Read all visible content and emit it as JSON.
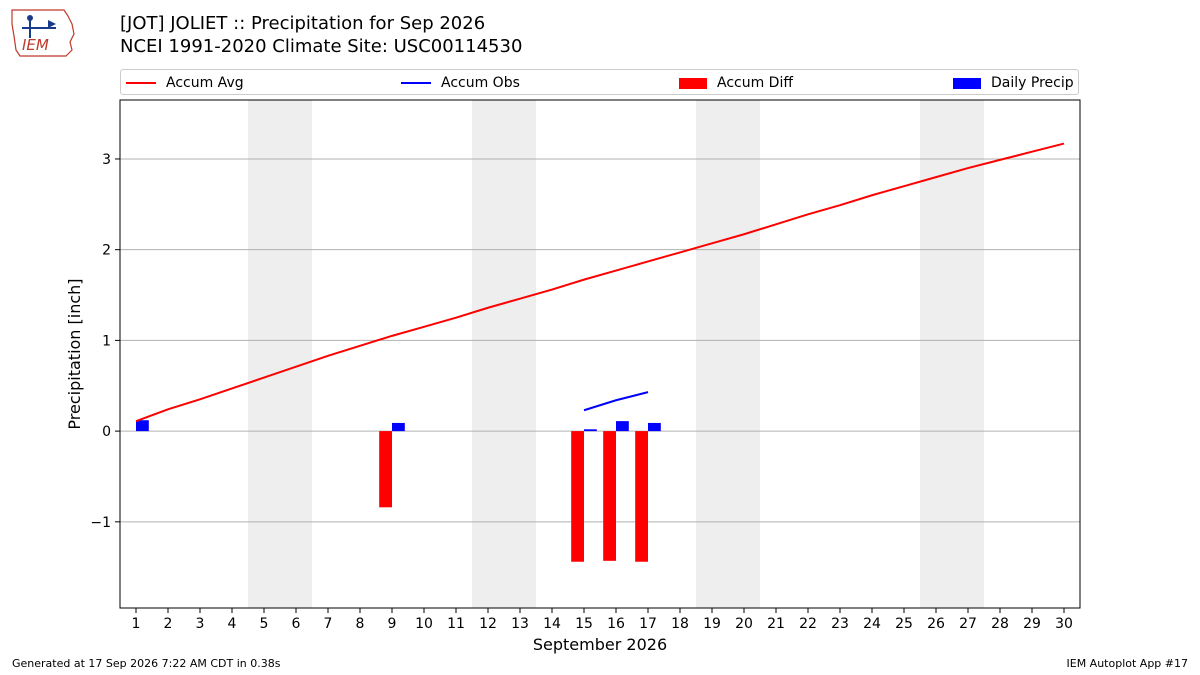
{
  "header": {
    "title_line1": "[JOT] JOLIET :: Precipitation for Sep 2026",
    "title_line2": "NCEI 1991-2020 Climate Site: USC00114530",
    "logo_text": "IEM"
  },
  "footer": {
    "generated": "Generated at 17 Sep 2026 7:22 AM CDT in 0.38s",
    "app": "IEM Autoplot App #17"
  },
  "colors": {
    "avg": "#ff0000",
    "obs": "#0000ff",
    "diff": "#ff0000",
    "daily": "#0000ff",
    "weekend": "#eeeeee",
    "grid": "#b0b0b0"
  },
  "legend": [
    {
      "label": "Accum Avg",
      "kind": "line",
      "color": "#ff0000"
    },
    {
      "label": "Accum Obs",
      "kind": "line",
      "color": "#0000ff"
    },
    {
      "label": "Accum Diff",
      "kind": "rect",
      "color": "#ff0000"
    },
    {
      "label": "Daily Precip",
      "kind": "rect",
      "color": "#0000ff"
    }
  ],
  "chart_data": {
    "type": "bar",
    "xlabel": "September 2026",
    "ylabel": "Precipitation [inch]",
    "xlim": [
      0.5,
      30.5
    ],
    "ylim": [
      -1.95,
      3.65
    ],
    "x_ticks": [
      1,
      2,
      3,
      4,
      5,
      6,
      7,
      8,
      9,
      10,
      11,
      12,
      13,
      14,
      15,
      16,
      17,
      18,
      19,
      20,
      21,
      22,
      23,
      24,
      25,
      26,
      27,
      28,
      29,
      30
    ],
    "y_ticks": [
      -1,
      0,
      1,
      2,
      3
    ],
    "y_tick_labels": [
      "−1",
      "0",
      "1",
      "2",
      "3"
    ],
    "grid": "horizontal",
    "legend_position": "top",
    "weekend_bands": [
      [
        4.5,
        6.5
      ],
      [
        11.5,
        13.5
      ],
      [
        18.5,
        20.5
      ],
      [
        25.5,
        27.5
      ]
    ],
    "series": [
      {
        "name": "Accum Avg",
        "type": "line",
        "x": [
          1,
          2,
          3,
          4,
          5,
          6,
          7,
          8,
          9,
          10,
          11,
          12,
          13,
          14,
          15,
          16,
          17,
          18,
          19,
          20,
          21,
          22,
          23,
          24,
          25,
          26,
          27,
          28,
          29,
          30
        ],
        "values": [
          0.11,
          0.24,
          0.35,
          0.47,
          0.59,
          0.71,
          0.83,
          0.94,
          1.05,
          1.15,
          1.25,
          1.36,
          1.46,
          1.56,
          1.67,
          1.77,
          1.87,
          1.97,
          2.07,
          2.17,
          2.28,
          2.39,
          2.49,
          2.6,
          2.7,
          2.8,
          2.9,
          2.99,
          3.08,
          3.17
        ]
      },
      {
        "name": "Accum Obs",
        "type": "line",
        "x": [
          15,
          16,
          17
        ],
        "values": [
          0.23,
          0.34,
          0.43
        ]
      },
      {
        "name": "Accum Diff",
        "type": "bar",
        "x": [
          9,
          15,
          16,
          17
        ],
        "values": [
          -0.84,
          -1.44,
          -1.43,
          -1.44
        ]
      },
      {
        "name": "Daily Precip",
        "type": "bar",
        "x": [
          1,
          9,
          15,
          16,
          17
        ],
        "values": [
          0.12,
          0.09,
          0.02,
          0.11,
          0.09
        ]
      }
    ]
  }
}
